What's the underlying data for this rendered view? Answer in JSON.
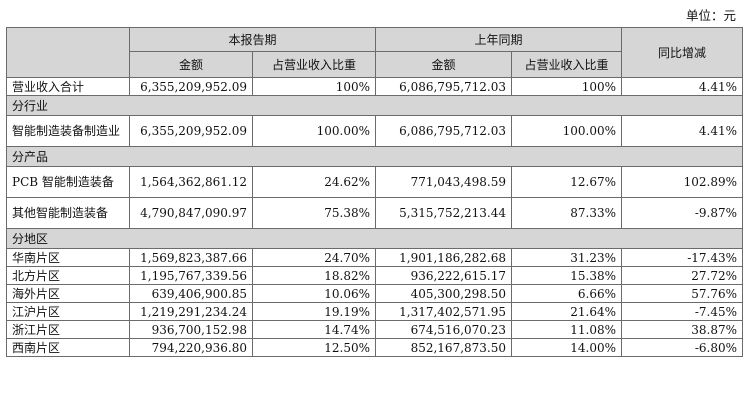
{
  "unit_label": "单位：元",
  "headers": {
    "current_period": "本报告期",
    "prior_period": "上年同期",
    "yoy_change": "同比增减",
    "amount": "金额",
    "share_of_revenue": "占营业收入比重"
  },
  "total": {
    "label": "营业收入合计",
    "current_amount": "6,355,209,952.09",
    "current_share": "100%",
    "prior_amount": "6,086,795,712.03",
    "prior_share": "100%",
    "change": "4.41%"
  },
  "sections": {
    "by_industry": {
      "title": "分行业",
      "rows": [
        {
          "label": "智能制造装备制造业",
          "current_amount": "6,355,209,952.09",
          "current_share": "100.00%",
          "prior_amount": "6,086,795,712.03",
          "prior_share": "100.00%",
          "change": "4.41%"
        }
      ]
    },
    "by_product": {
      "title": "分产品",
      "rows": [
        {
          "label": "PCB 智能制造装备",
          "current_amount": "1,564,362,861.12",
          "current_share": "24.62%",
          "prior_amount": "771,043,498.59",
          "prior_share": "12.67%",
          "change": "102.89%"
        },
        {
          "label": "其他智能制造装备",
          "current_amount": "4,790,847,090.97",
          "current_share": "75.38%",
          "prior_amount": "5,315,752,213.44",
          "prior_share": "87.33%",
          "change": "-9.87%"
        }
      ]
    },
    "by_region": {
      "title": "分地区",
      "rows": [
        {
          "label": "华南片区",
          "current_amount": "1,569,823,387.66",
          "current_share": "24.70%",
          "prior_amount": "1,901,186,282.68",
          "prior_share": "31.23%",
          "change": "-17.43%"
        },
        {
          "label": "北方片区",
          "current_amount": "1,195,767,339.56",
          "current_share": "18.82%",
          "prior_amount": "936,222,615.17",
          "prior_share": "15.38%",
          "change": "27.72%"
        },
        {
          "label": "海外片区",
          "current_amount": "639,406,900.85",
          "current_share": "10.06%",
          "prior_amount": "405,300,298.50",
          "prior_share": "6.66%",
          "change": "57.76%"
        },
        {
          "label": "江沪片区",
          "current_amount": "1,219,291,234.24",
          "current_share": "19.19%",
          "prior_amount": "1,317,402,571.95",
          "prior_share": "21.64%",
          "change": "-7.45%"
        },
        {
          "label": "浙江片区",
          "current_amount": "936,700,152.98",
          "current_share": "14.74%",
          "prior_amount": "674,516,070.23",
          "prior_share": "11.08%",
          "change": "38.87%"
        },
        {
          "label": "西南片区",
          "current_amount": "794,220,936.80",
          "current_share": "12.50%",
          "prior_amount": "852,167,873.50",
          "prior_share": "14.00%",
          "change": "-6.80%"
        }
      ]
    }
  }
}
